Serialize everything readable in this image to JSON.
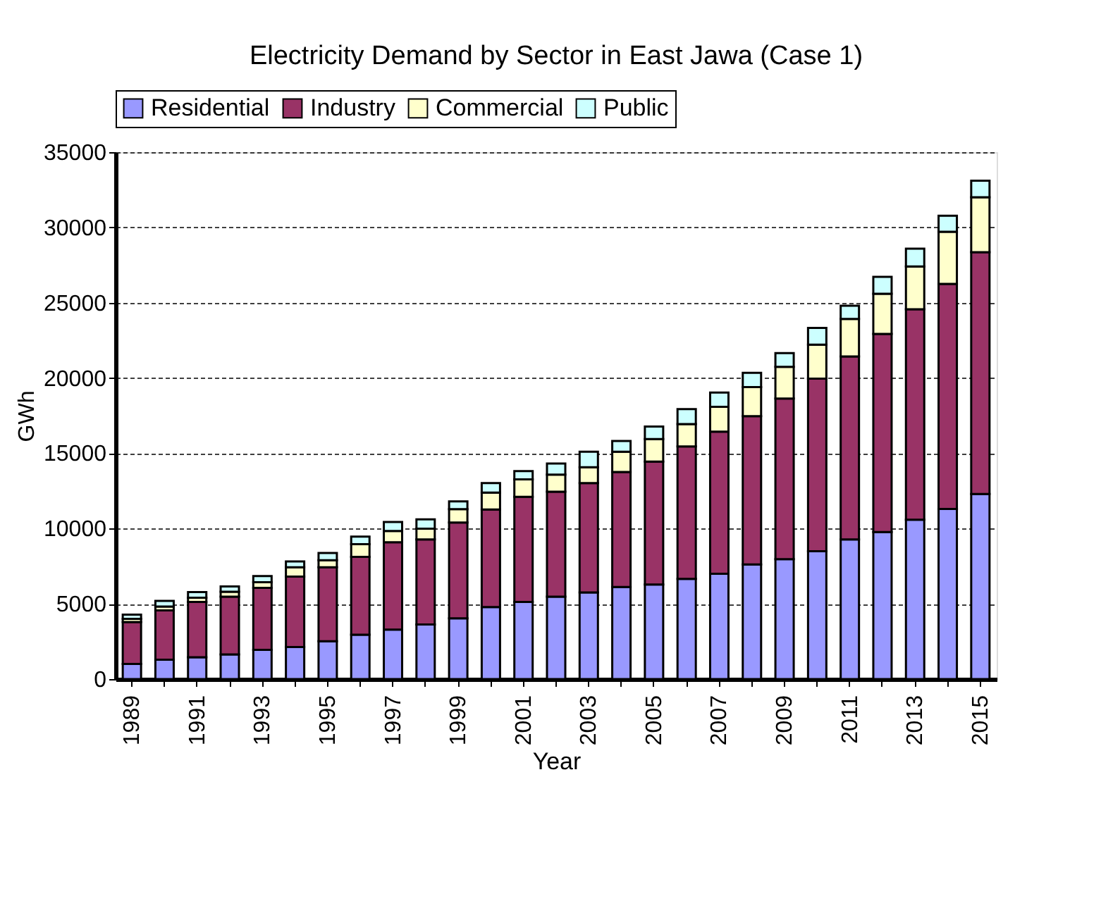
{
  "chart_data": {
    "type": "bar",
    "title": "Electricity Demand by Sector in East Jawa (Case 1)",
    "xlabel": "Year",
    "ylabel": "GWh",
    "categories": [
      "1989",
      null,
      "1991",
      null,
      "1993",
      null,
      "1995",
      null,
      "1997",
      null,
      "1999",
      null,
      "2001",
      null,
      "2003",
      null,
      "2005",
      null,
      "2007",
      null,
      "2009",
      null,
      "2011",
      null,
      "2013",
      null,
      "2015"
    ],
    "stacked": true,
    "series": [
      {
        "name": "Residential",
        "color": "#9999ff",
        "values": [
          1010,
          1290,
          1450,
          1640,
          1940,
          2130,
          2510,
          2950,
          3290,
          3630,
          4040,
          4790,
          5120,
          5470,
          5750,
          6120,
          6280,
          6660,
          7000,
          7620,
          7970,
          8490,
          9280,
          9770,
          10590,
          11300,
          12300
        ]
      },
      {
        "name": "Industry",
        "color": "#993366",
        "values": [
          2780,
          3270,
          3670,
          3830,
          4120,
          4680,
          4920,
          5170,
          5800,
          5650,
          6360,
          6480,
          6990,
          6980,
          7270,
          7640,
          8170,
          8790,
          9440,
          9850,
          10660,
          11470,
          12150,
          13160,
          13980,
          14950,
          16050
        ]
      },
      {
        "name": "Commercial",
        "color": "#ffffcc",
        "values": [
          210,
          260,
          280,
          330,
          370,
          620,
          470,
          840,
          750,
          710,
          890,
          1120,
          1150,
          1130,
          1050,
          1340,
          1500,
          1490,
          1650,
          1930,
          2110,
          2250,
          2490,
          2670,
          2840,
          3460,
          3650
        ]
      },
      {
        "name": "Public",
        "color": "#ccffff",
        "values": [
          280,
          370,
          380,
          350,
          410,
          380,
          470,
          500,
          590,
          620,
          510,
          630,
          560,
          740,
          1030,
          720,
          830,
          990,
          940,
          940,
          910,
          1120,
          880,
          1120,
          1180,
          1070,
          1100
        ]
      }
    ],
    "ylim": [
      0,
      35000
    ],
    "yticks": [
      0,
      5000,
      10000,
      15000,
      20000,
      25000,
      30000,
      35000
    ],
    "grid": "y",
    "legend": "top"
  }
}
